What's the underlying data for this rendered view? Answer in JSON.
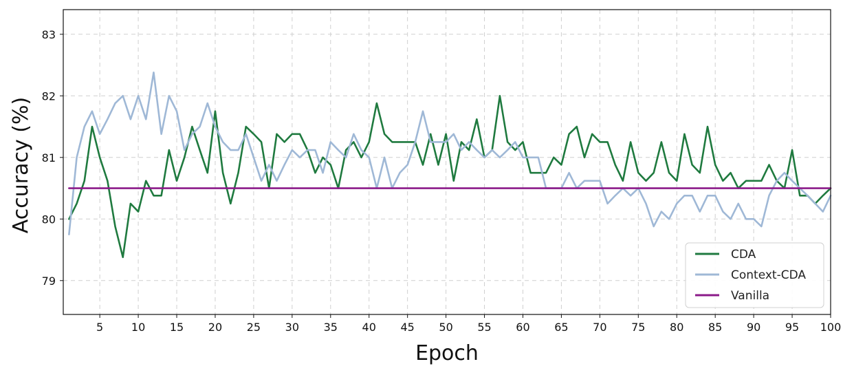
{
  "chart_data": {
    "type": "line",
    "title": "",
    "xlabel": "Epoch",
    "ylabel": "Accuracy (%)",
    "xlim": [
      0.25,
      100
    ],
    "ylim": [
      78.45,
      83.4
    ],
    "grid": true,
    "legend_position": "bottom-right",
    "x_ticks": [
      5,
      10,
      15,
      20,
      25,
      30,
      35,
      40,
      45,
      50,
      55,
      60,
      65,
      70,
      75,
      80,
      85,
      90,
      95,
      100
    ],
    "y_ticks": [
      79,
      80,
      81,
      82,
      83
    ],
    "colors": {
      "CDA": "#1f7a3f",
      "Context-CDA": "#9fb8d6",
      "Vanilla": "#8b1a89"
    },
    "x": [
      1,
      2,
      3,
      4,
      5,
      6,
      7,
      8,
      9,
      10,
      11,
      12,
      13,
      14,
      15,
      16,
      17,
      18,
      19,
      20,
      21,
      22,
      23,
      24,
      25,
      26,
      27,
      28,
      29,
      30,
      31,
      32,
      33,
      34,
      35,
      36,
      37,
      38,
      39,
      40,
      41,
      42,
      43,
      44,
      45,
      46,
      47,
      48,
      49,
      50,
      51,
      52,
      53,
      54,
      55,
      56,
      57,
      58,
      59,
      60,
      61,
      62,
      63,
      64,
      65,
      66,
      67,
      68,
      69,
      70,
      71,
      72,
      73,
      74,
      75,
      76,
      77,
      78,
      79,
      80,
      81,
      82,
      83,
      84,
      85,
      86,
      87,
      88,
      89,
      90,
      91,
      92,
      93,
      94,
      95,
      96,
      97,
      98,
      99,
      100
    ],
    "series": [
      {
        "name": "CDA",
        "values": [
          80.0,
          80.25,
          80.62,
          81.5,
          81.0,
          80.62,
          79.88,
          79.38,
          80.25,
          80.12,
          80.62,
          80.38,
          80.38,
          81.12,
          80.62,
          81.0,
          81.5,
          81.12,
          80.75,
          81.75,
          80.75,
          80.25,
          80.75,
          81.5,
          81.38,
          81.25,
          80.5,
          81.38,
          81.25,
          81.38,
          81.38,
          81.12,
          80.75,
          81.0,
          80.88,
          80.5,
          81.12,
          81.25,
          81.0,
          81.25,
          81.88,
          81.38,
          81.25,
          81.25,
          81.25,
          81.25,
          80.88,
          81.38,
          80.88,
          81.38,
          80.62,
          81.25,
          81.12,
          81.62,
          81.0,
          81.12,
          82.0,
          81.25,
          81.12,
          81.25,
          80.75,
          80.75,
          80.75,
          81.0,
          80.88,
          81.38,
          81.5,
          81.0,
          81.38,
          81.25,
          81.25,
          80.88,
          80.62,
          81.25,
          80.75,
          80.62,
          80.75,
          81.25,
          80.75,
          80.62,
          81.38,
          80.88,
          80.75,
          81.5,
          80.88,
          80.62,
          80.75,
          80.5,
          80.62,
          80.62,
          80.62,
          80.88,
          80.62,
          80.5,
          81.12,
          80.38,
          80.38,
          80.25,
          80.38,
          80.5
        ]
      },
      {
        "name": "Context-CDA",
        "values": [
          79.75,
          81.0,
          81.5,
          81.75,
          81.38,
          81.62,
          81.88,
          82.0,
          81.62,
          82.0,
          81.62,
          82.38,
          81.38,
          82.0,
          81.75,
          81.12,
          81.38,
          81.5,
          81.88,
          81.5,
          81.25,
          81.12,
          81.12,
          81.38,
          81.0,
          80.62,
          80.88,
          80.62,
          80.88,
          81.12,
          81.0,
          81.12,
          81.12,
          80.75,
          81.25,
          81.12,
          81.0,
          81.38,
          81.12,
          81.0,
          80.5,
          81.0,
          80.5,
          80.75,
          80.88,
          81.25,
          81.75,
          81.25,
          81.25,
          81.25,
          81.38,
          81.12,
          81.25,
          81.12,
          81.0,
          81.12,
          81.0,
          81.12,
          81.25,
          81.0,
          81.0,
          81.0,
          80.5,
          80.5,
          80.5,
          80.75,
          80.5,
          80.62,
          80.62,
          80.62,
          80.25,
          80.38,
          80.5,
          80.38,
          80.5,
          80.25,
          79.88,
          80.12,
          80.0,
          80.25,
          80.38,
          80.38,
          80.12,
          80.38,
          80.38,
          80.12,
          80.0,
          80.25,
          80.0,
          80.0,
          79.88,
          80.38,
          80.62,
          80.75,
          80.62,
          80.5,
          80.38,
          80.25,
          80.12,
          80.38
        ]
      },
      {
        "name": "Vanilla",
        "values": [
          80.5,
          80.5,
          80.5,
          80.5,
          80.5,
          80.5,
          80.5,
          80.5,
          80.5,
          80.5,
          80.5,
          80.5,
          80.5,
          80.5,
          80.5,
          80.5,
          80.5,
          80.5,
          80.5,
          80.5,
          80.5,
          80.5,
          80.5,
          80.5,
          80.5,
          80.5,
          80.5,
          80.5,
          80.5,
          80.5,
          80.5,
          80.5,
          80.5,
          80.5,
          80.5,
          80.5,
          80.5,
          80.5,
          80.5,
          80.5,
          80.5,
          80.5,
          80.5,
          80.5,
          80.5,
          80.5,
          80.5,
          80.5,
          80.5,
          80.5,
          80.5,
          80.5,
          80.5,
          80.5,
          80.5,
          80.5,
          80.5,
          80.5,
          80.5,
          80.5,
          80.5,
          80.5,
          80.5,
          80.5,
          80.5,
          80.5,
          80.5,
          80.5,
          80.5,
          80.5,
          80.5,
          80.5,
          80.5,
          80.5,
          80.5,
          80.5,
          80.5,
          80.5,
          80.5,
          80.5,
          80.5,
          80.5,
          80.5,
          80.5,
          80.5,
          80.5,
          80.5,
          80.5,
          80.5,
          80.5,
          80.5,
          80.5,
          80.5,
          80.5,
          80.5,
          80.5,
          80.5,
          80.5,
          80.5,
          80.5
        ]
      }
    ]
  }
}
